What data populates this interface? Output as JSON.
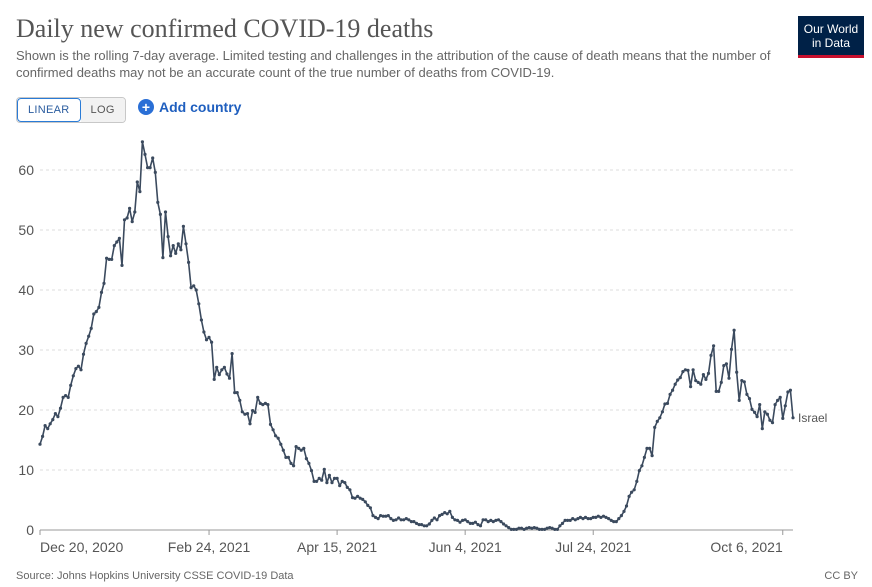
{
  "header": {
    "title": "Daily new confirmed COVID-19 deaths",
    "subtitle": "Shown is the rolling 7-day average. Limited testing and challenges in the attribution of the cause of death means that the number of confirmed deaths may not be an accurate count of the true number of deaths from COVID-19."
  },
  "logo": {
    "line1": "Our World",
    "line2": "in Data"
  },
  "controls": {
    "linear_label": "LINEAR",
    "log_label": "LOG",
    "add_country_label": "Add country",
    "selected_scale": "LINEAR"
  },
  "footer": {
    "source": "Source: Johns Hopkins University CSSE COVID-19 Data",
    "license": "CC BY"
  },
  "colors": {
    "line": "#3b4a5e",
    "grid": "#dddddd",
    "axis_text": "#555555",
    "accent": "#2a6fd6"
  },
  "chart_data": {
    "type": "line",
    "title": "Daily new confirmed COVID-19 deaths",
    "xlabel": "",
    "ylabel": "",
    "ylim": [
      0,
      65
    ],
    "yticks": [
      0,
      10,
      20,
      30,
      40,
      50,
      60
    ],
    "x_start": "2020-12-20",
    "x_end": "2021-10-06",
    "xtick_labels": [
      "Dec 20, 2020",
      "Feb 24, 2021",
      "Apr 15, 2021",
      "Jun 4, 2021",
      "Jul 24, 2021",
      "Oct 6, 2021"
    ],
    "xtick_days": [
      0,
      66,
      116,
      166,
      216,
      290
    ],
    "grid": true,
    "series": [
      {
        "name": "Israel",
        "values": [
          14.3,
          15.6,
          17.4,
          16.9,
          17.7,
          18.4,
          19.4,
          18.9,
          20.3,
          22.1,
          22.4,
          22.1,
          24.1,
          25.7,
          26.9,
          27.3,
          26.7,
          29.3,
          31.1,
          32.3,
          33.6,
          36.0,
          36.4,
          37.1,
          39.6,
          41.1,
          45.3,
          45.1,
          45.1,
          47.4,
          48.0,
          48.6,
          44.1,
          51.7,
          52.0,
          53.6,
          51.4,
          53.0,
          58.0,
          56.4,
          64.7,
          62.6,
          60.4,
          60.4,
          62.0,
          59.6,
          54.6,
          52.6,
          45.4,
          53.0,
          48.9,
          45.7,
          47.4,
          46.1,
          47.7,
          46.7,
          50.6,
          47.7,
          44.6,
          40.4,
          40.7,
          40.0,
          37.7,
          35.0,
          33.0,
          31.7,
          32.1,
          31.3,
          25.1,
          27.1,
          25.9,
          26.7,
          27.1,
          26.0,
          25.3,
          29.4,
          22.9,
          22.9,
          21.6,
          19.7,
          19.3,
          19.4,
          17.7,
          19.9,
          19.6,
          22.1,
          21.1,
          20.9,
          21.1,
          20.9,
          17.6,
          16.7,
          15.7,
          15.3,
          14.3,
          13.3,
          12.1,
          12.1,
          11.1,
          10.7,
          13.9,
          13.6,
          13.3,
          13.6,
          11.9,
          11.1,
          9.9,
          8.1,
          8.1,
          8.6,
          8.3,
          10.1,
          7.9,
          9.1,
          7.9,
          8.6,
          8.6,
          7.4,
          8.1,
          7.9,
          7.1,
          6.7,
          5.4,
          5.3,
          5.6,
          5.3,
          5.1,
          4.7,
          4.1,
          3.7,
          2.4,
          2.1,
          1.9,
          2.4,
          2.3,
          2.3,
          2.4,
          1.9,
          1.6,
          1.7,
          2.0,
          1.7,
          1.7,
          1.9,
          1.7,
          1.4,
          1.4,
          1.1,
          0.9,
          0.9,
          0.7,
          0.7,
          1.0,
          1.6,
          2.0,
          1.7,
          2.4,
          2.6,
          2.9,
          2.7,
          3.1,
          2.1,
          1.7,
          1.6,
          1.3,
          1.6,
          1.7,
          1.4,
          1.1,
          1.1,
          1.3,
          0.9,
          0.7,
          1.7,
          1.7,
          1.4,
          1.6,
          1.4,
          1.6,
          1.7,
          1.4,
          1.0,
          0.7,
          0.4,
          0.1,
          0.1,
          0.1,
          0.3,
          0.3,
          0.1,
          0.3,
          0.4,
          0.3,
          0.4,
          0.3,
          0.1,
          0.1,
          0.1,
          0.3,
          0.4,
          0.3,
          0.1,
          0.1,
          0.7,
          1.1,
          1.6,
          1.6,
          1.6,
          1.9,
          1.7,
          1.9,
          2.1,
          1.9,
          2.1,
          1.9,
          1.9,
          2.1,
          2.1,
          2.3,
          2.1,
          2.3,
          2.1,
          1.9,
          1.6,
          1.4,
          1.4,
          1.9,
          2.4,
          3.1,
          4.0,
          5.6,
          6.3,
          6.7,
          8.1,
          9.9,
          10.7,
          12.1,
          13.6,
          13.6,
          12.4,
          17.1,
          18.1,
          18.7,
          19.7,
          21.0,
          21.1,
          22.6,
          23.3,
          24.3,
          25.0,
          25.4,
          26.4,
          26.7,
          26.6,
          23.9,
          26.7,
          24.9,
          24.6,
          24.3,
          25.9,
          25.1,
          26.1,
          29.1,
          30.7,
          23.1,
          23.1,
          24.6,
          27.4,
          27.7,
          25.3,
          30.1,
          33.3,
          26.3,
          21.6,
          24.9,
          24.7,
          22.6,
          21.9,
          20.1,
          19.6,
          18.9,
          20.9,
          16.9,
          19.7,
          19.3,
          18.3,
          17.9,
          20.9,
          21.6,
          22.1,
          18.6,
          20.7,
          23.0,
          23.3,
          18.7
        ]
      }
    ]
  }
}
